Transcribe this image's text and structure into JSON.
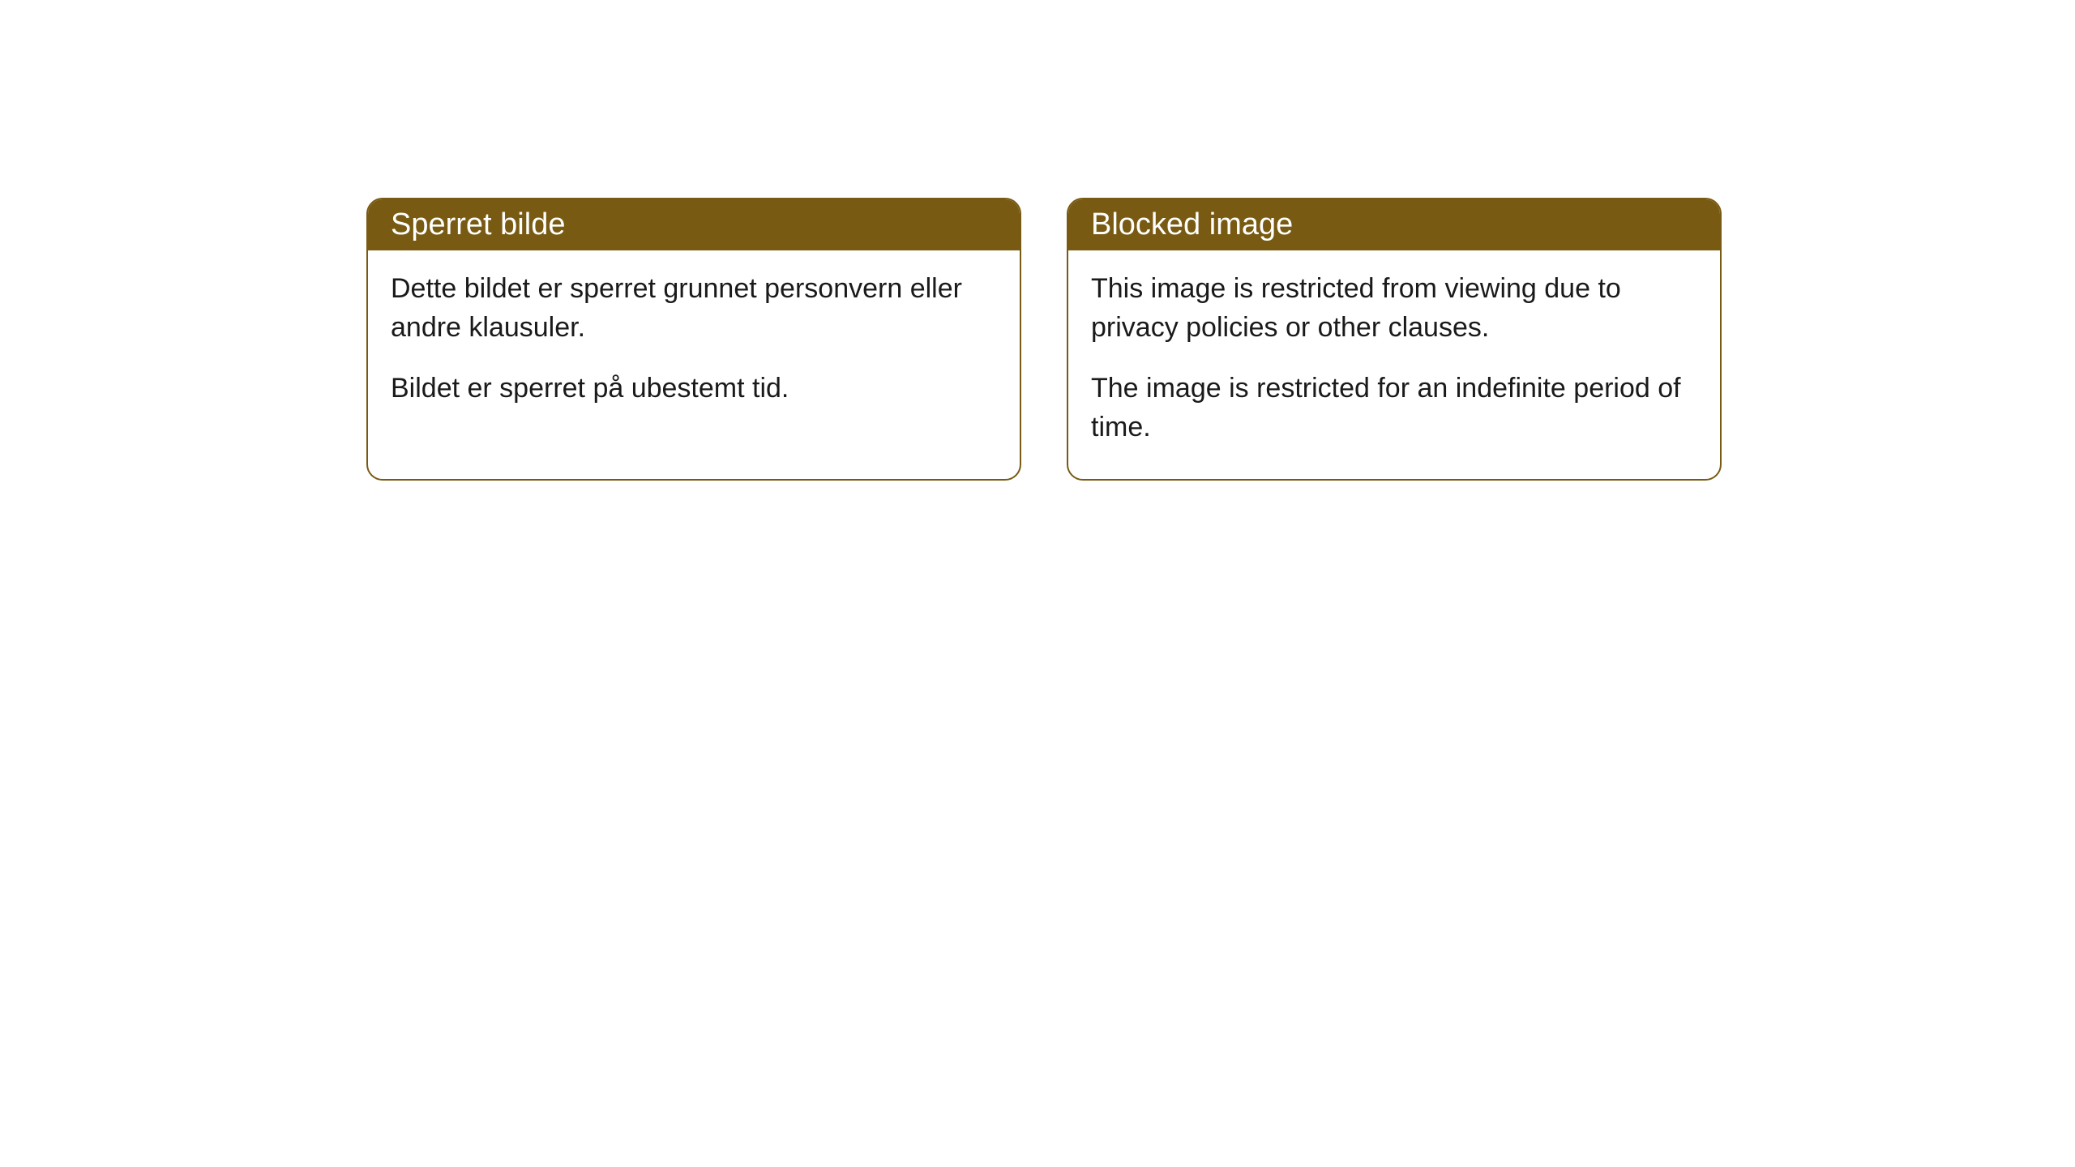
{
  "cards": [
    {
      "title": "Sperret bilde",
      "paragraph1": "Dette bildet er sperret grunnet personvern eller andre klausuler.",
      "paragraph2": "Bildet er sperret på ubestemt tid."
    },
    {
      "title": "Blocked image",
      "paragraph1": "This image is restricted from viewing due to privacy policies or other clauses.",
      "paragraph2": "The image is restricted for an indefinite period of time."
    }
  ],
  "styling": {
    "header_background_color": "#785a12",
    "header_text_color": "#ffffff",
    "border_color": "#785a12",
    "body_background_color": "#ffffff",
    "body_text_color": "#1a1a1a",
    "border_radius": 20,
    "header_fontsize": 38,
    "body_fontsize": 34
  }
}
